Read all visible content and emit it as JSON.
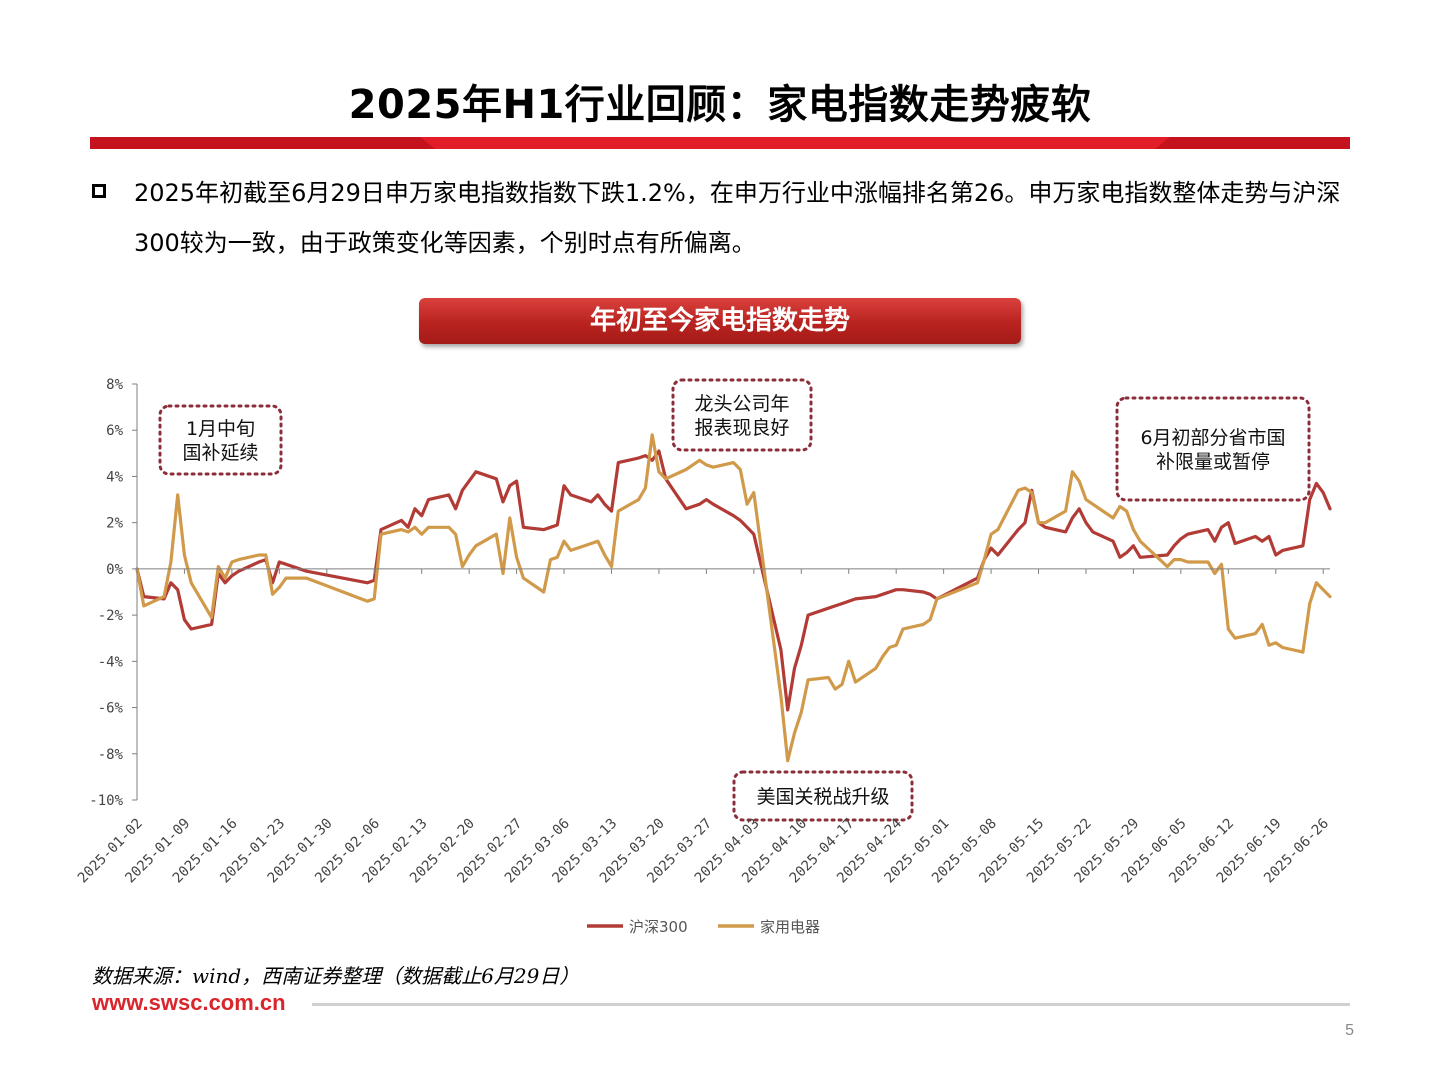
{
  "title": "2025年H1行业回顾：家电指数走势疲软",
  "bullet": "2025年初截至6月29日申万家电指数指数下跌1.2%，在申万行业中涨幅排名第26。申万家电指数整体走势与沪深300较为一致，由于政策变化等因素，个别时点有所偏离。",
  "chart_banner": "年初至今家电指数走势",
  "source": "数据来源：wind，西南证券整理（数据截止6月29日）",
  "website": "www.swsc.com.cn",
  "page_number": "5",
  "colors": {
    "accent": "#d9252b",
    "hs300": "#b23b36",
    "appliance": "#d09a4a",
    "annotation_border": "#8b2e3a"
  },
  "chart_data": {
    "type": "line",
    "ylim": [
      -10,
      8
    ],
    "yticks": [
      8,
      6,
      4,
      2,
      0,
      -2,
      -4,
      -6,
      -8,
      -10
    ],
    "ytick_labels": [
      "8%",
      "6%",
      "4%",
      "2%",
      "0%",
      "-2%",
      "-4%",
      "-6%",
      "-8%",
      "-10%"
    ],
    "xlim": [
      "2025-01-02",
      "2025-06-27"
    ],
    "xticks": [
      "2025-01-02",
      "2025-01-09",
      "2025-01-16",
      "2025-01-23",
      "2025-01-30",
      "2025-02-06",
      "2025-02-13",
      "2025-02-20",
      "2025-02-27",
      "2025-03-06",
      "2025-03-13",
      "2025-03-20",
      "2025-03-27",
      "2025-04-03",
      "2025-04-10",
      "2025-04-17",
      "2025-04-24",
      "2025-05-01",
      "2025-05-08",
      "2025-05-15",
      "2025-05-22",
      "2025-05-29",
      "2025-06-05",
      "2025-06-12",
      "2025-06-19",
      "2025-06-26"
    ],
    "legend_position": "bottom",
    "series": [
      {
        "name": "沪深300",
        "color": "#b23b36",
        "points": [
          [
            "2025-01-02",
            0
          ],
          [
            "2025-01-03",
            -1.2
          ],
          [
            "2025-01-06",
            -1.3
          ],
          [
            "2025-01-07",
            -0.6
          ],
          [
            "2025-01-08",
            -0.9
          ],
          [
            "2025-01-09",
            -2.2
          ],
          [
            "2025-01-10",
            -2.6
          ],
          [
            "2025-01-13",
            -2.4
          ],
          [
            "2025-01-14",
            -0.2
          ],
          [
            "2025-01-15",
            -0.6
          ],
          [
            "2025-01-16",
            -0.3
          ],
          [
            "2025-01-17",
            -0.1
          ],
          [
            "2025-01-20",
            0.3
          ],
          [
            "2025-01-21",
            0.4
          ],
          [
            "2025-01-22",
            -0.6
          ],
          [
            "2025-01-23",
            0.3
          ],
          [
            "2025-01-24",
            0.2
          ],
          [
            "2025-01-27",
            -0.1
          ],
          [
            "2025-02-05",
            -0.6
          ],
          [
            "2025-02-06",
            -0.5
          ],
          [
            "2025-02-07",
            1.7
          ],
          [
            "2025-02-10",
            2.1
          ],
          [
            "2025-02-11",
            1.8
          ],
          [
            "2025-02-12",
            2.6
          ],
          [
            "2025-02-13",
            2.3
          ],
          [
            "2025-02-14",
            3.0
          ],
          [
            "2025-02-17",
            3.2
          ],
          [
            "2025-02-18",
            2.6
          ],
          [
            "2025-02-19",
            3.4
          ],
          [
            "2025-02-20",
            3.8
          ],
          [
            "2025-02-21",
            4.2
          ],
          [
            "2025-02-24",
            3.9
          ],
          [
            "2025-02-25",
            2.9
          ],
          [
            "2025-02-26",
            3.6
          ],
          [
            "2025-02-27",
            3.8
          ],
          [
            "2025-02-28",
            1.8
          ],
          [
            "2025-03-03",
            1.7
          ],
          [
            "2025-03-04",
            1.8
          ],
          [
            "2025-03-05",
            1.9
          ],
          [
            "2025-03-06",
            3.6
          ],
          [
            "2025-03-07",
            3.2
          ],
          [
            "2025-03-10",
            2.9
          ],
          [
            "2025-03-11",
            3.2
          ],
          [
            "2025-03-12",
            2.8
          ],
          [
            "2025-03-13",
            2.5
          ],
          [
            "2025-03-14",
            4.6
          ],
          [
            "2025-03-17",
            4.8
          ],
          [
            "2025-03-18",
            4.9
          ],
          [
            "2025-03-19",
            4.7
          ],
          [
            "2025-03-20",
            5.1
          ],
          [
            "2025-03-21",
            3.9
          ],
          [
            "2025-03-24",
            2.6
          ],
          [
            "2025-03-25",
            2.7
          ],
          [
            "2025-03-26",
            2.8
          ],
          [
            "2025-03-27",
            3.0
          ],
          [
            "2025-03-28",
            2.8
          ],
          [
            "2025-03-31",
            2.3
          ],
          [
            "2025-04-01",
            2.1
          ],
          [
            "2025-04-02",
            1.8
          ],
          [
            "2025-04-03",
            1.5
          ],
          [
            "2025-04-07",
            -3.5
          ],
          [
            "2025-04-08",
            -6.1
          ],
          [
            "2025-04-09",
            -4.3
          ],
          [
            "2025-04-10",
            -3.3
          ],
          [
            "2025-04-11",
            -2.0
          ],
          [
            "2025-04-14",
            -1.7
          ],
          [
            "2025-04-15",
            -1.6
          ],
          [
            "2025-04-16",
            -1.5
          ],
          [
            "2025-04-17",
            -1.4
          ],
          [
            "2025-04-18",
            -1.3
          ],
          [
            "2025-04-21",
            -1.2
          ],
          [
            "2025-04-22",
            -1.1
          ],
          [
            "2025-04-23",
            -1.0
          ],
          [
            "2025-04-24",
            -0.9
          ],
          [
            "2025-04-25",
            -0.9
          ],
          [
            "2025-04-28",
            -1.0
          ],
          [
            "2025-04-29",
            -1.1
          ],
          [
            "2025-04-30",
            -1.3
          ],
          [
            "2025-05-06",
            -0.4
          ],
          [
            "2025-05-07",
            0.4
          ],
          [
            "2025-05-08",
            0.9
          ],
          [
            "2025-05-09",
            0.6
          ],
          [
            "2025-05-12",
            1.7
          ],
          [
            "2025-05-13",
            2.0
          ],
          [
            "2025-05-14",
            3.4
          ],
          [
            "2025-05-15",
            2.0
          ],
          [
            "2025-05-16",
            1.8
          ],
          [
            "2025-05-19",
            1.6
          ],
          [
            "2025-05-20",
            2.2
          ],
          [
            "2025-05-21",
            2.6
          ],
          [
            "2025-05-22",
            2.0
          ],
          [
            "2025-05-23",
            1.6
          ],
          [
            "2025-05-26",
            1.2
          ],
          [
            "2025-05-27",
            0.5
          ],
          [
            "2025-05-28",
            0.7
          ],
          [
            "2025-05-29",
            1.0
          ],
          [
            "2025-05-30",
            0.5
          ],
          [
            "2025-06-03",
            0.6
          ],
          [
            "2025-06-04",
            1.0
          ],
          [
            "2025-06-05",
            1.3
          ],
          [
            "2025-06-06",
            1.5
          ],
          [
            "2025-06-09",
            1.7
          ],
          [
            "2025-06-10",
            1.2
          ],
          [
            "2025-06-11",
            1.8
          ],
          [
            "2025-06-12",
            2.0
          ],
          [
            "2025-06-13",
            1.1
          ],
          [
            "2025-06-16",
            1.4
          ],
          [
            "2025-06-17",
            1.2
          ],
          [
            "2025-06-18",
            1.4
          ],
          [
            "2025-06-19",
            0.6
          ],
          [
            "2025-06-20",
            0.8
          ],
          [
            "2025-06-23",
            1.0
          ],
          [
            "2025-06-24",
            3.0
          ],
          [
            "2025-06-25",
            3.7
          ],
          [
            "2025-06-26",
            3.3
          ],
          [
            "2025-06-27",
            2.6
          ]
        ]
      },
      {
        "name": "家用电器",
        "color": "#d09a4a",
        "points": [
          [
            "2025-01-02",
            0
          ],
          [
            "2025-01-03",
            -1.6
          ],
          [
            "2025-01-06",
            -1.2
          ],
          [
            "2025-01-07",
            0.3
          ],
          [
            "2025-01-08",
            3.2
          ],
          [
            "2025-01-09",
            0.6
          ],
          [
            "2025-01-10",
            -0.6
          ],
          [
            "2025-01-13",
            -2.1
          ],
          [
            "2025-01-14",
            0.1
          ],
          [
            "2025-01-15",
            -0.4
          ],
          [
            "2025-01-16",
            0.3
          ],
          [
            "2025-01-17",
            0.4
          ],
          [
            "2025-01-20",
            0.6
          ],
          [
            "2025-01-21",
            0.6
          ],
          [
            "2025-01-22",
            -1.1
          ],
          [
            "2025-01-23",
            -0.8
          ],
          [
            "2025-01-24",
            -0.4
          ],
          [
            "2025-01-27",
            -0.4
          ],
          [
            "2025-02-05",
            -1.4
          ],
          [
            "2025-02-06",
            -1.3
          ],
          [
            "2025-02-07",
            1.5
          ],
          [
            "2025-02-10",
            1.7
          ],
          [
            "2025-02-11",
            1.6
          ],
          [
            "2025-02-12",
            1.8
          ],
          [
            "2025-02-13",
            1.5
          ],
          [
            "2025-02-14",
            1.8
          ],
          [
            "2025-02-17",
            1.8
          ],
          [
            "2025-02-18",
            1.5
          ],
          [
            "2025-02-19",
            0.1
          ],
          [
            "2025-02-20",
            0.6
          ],
          [
            "2025-02-21",
            1.0
          ],
          [
            "2025-02-24",
            1.5
          ],
          [
            "2025-02-25",
            -0.2
          ],
          [
            "2025-02-26",
            2.2
          ],
          [
            "2025-02-27",
            0.5
          ],
          [
            "2025-02-28",
            -0.4
          ],
          [
            "2025-03-03",
            -1.0
          ],
          [
            "2025-03-04",
            0.4
          ],
          [
            "2025-03-05",
            0.5
          ],
          [
            "2025-03-06",
            1.2
          ],
          [
            "2025-03-07",
            0.8
          ],
          [
            "2025-03-10",
            1.1
          ],
          [
            "2025-03-11",
            1.2
          ],
          [
            "2025-03-12",
            0.6
          ],
          [
            "2025-03-13",
            0.1
          ],
          [
            "2025-03-14",
            2.5
          ],
          [
            "2025-03-17",
            3.0
          ],
          [
            "2025-03-18",
            3.5
          ],
          [
            "2025-03-19",
            5.8
          ],
          [
            "2025-03-20",
            4.2
          ],
          [
            "2025-03-21",
            3.9
          ],
          [
            "2025-03-24",
            4.3
          ],
          [
            "2025-03-25",
            4.5
          ],
          [
            "2025-03-26",
            4.7
          ],
          [
            "2025-03-27",
            4.5
          ],
          [
            "2025-03-28",
            4.4
          ],
          [
            "2025-03-31",
            4.6
          ],
          [
            "2025-04-01",
            4.3
          ],
          [
            "2025-04-02",
            2.8
          ],
          [
            "2025-04-03",
            3.3
          ],
          [
            "2025-04-07",
            -5.5
          ],
          [
            "2025-04-08",
            -8.3
          ],
          [
            "2025-04-09",
            -7.1
          ],
          [
            "2025-04-10",
            -6.2
          ],
          [
            "2025-04-11",
            -4.8
          ],
          [
            "2025-04-14",
            -4.7
          ],
          [
            "2025-04-15",
            -5.2
          ],
          [
            "2025-04-16",
            -5.0
          ],
          [
            "2025-04-17",
            -4.0
          ],
          [
            "2025-04-18",
            -4.9
          ],
          [
            "2025-04-21",
            -4.3
          ],
          [
            "2025-04-22",
            -3.8
          ],
          [
            "2025-04-23",
            -3.4
          ],
          [
            "2025-04-24",
            -3.3
          ],
          [
            "2025-04-25",
            -2.6
          ],
          [
            "2025-04-28",
            -2.4
          ],
          [
            "2025-04-29",
            -2.2
          ],
          [
            "2025-04-30",
            -1.3
          ],
          [
            "2025-05-06",
            -0.6
          ],
          [
            "2025-05-07",
            0.4
          ],
          [
            "2025-05-08",
            1.5
          ],
          [
            "2025-05-09",
            1.7
          ],
          [
            "2025-05-12",
            3.4
          ],
          [
            "2025-05-13",
            3.5
          ],
          [
            "2025-05-14",
            3.3
          ],
          [
            "2025-05-15",
            2.0
          ],
          [
            "2025-05-16",
            2.0
          ],
          [
            "2025-05-19",
            2.5
          ],
          [
            "2025-05-20",
            4.2
          ],
          [
            "2025-05-21",
            3.8
          ],
          [
            "2025-05-22",
            3.0
          ],
          [
            "2025-05-23",
            2.8
          ],
          [
            "2025-05-26",
            2.2
          ],
          [
            "2025-05-27",
            2.7
          ],
          [
            "2025-05-28",
            2.5
          ],
          [
            "2025-05-29",
            1.7
          ],
          [
            "2025-05-30",
            1.2
          ],
          [
            "2025-06-03",
            0.1
          ],
          [
            "2025-06-04",
            0.4
          ],
          [
            "2025-06-05",
            0.4
          ],
          [
            "2025-06-06",
            0.3
          ],
          [
            "2025-06-09",
            0.3
          ],
          [
            "2025-06-10",
            -0.2
          ],
          [
            "2025-06-11",
            0.2
          ],
          [
            "2025-06-12",
            -2.6
          ],
          [
            "2025-06-13",
            -3.0
          ],
          [
            "2025-06-16",
            -2.8
          ],
          [
            "2025-06-17",
            -2.4
          ],
          [
            "2025-06-18",
            -3.3
          ],
          [
            "2025-06-19",
            -3.2
          ],
          [
            "2025-06-20",
            -3.4
          ],
          [
            "2025-06-23",
            -3.6
          ],
          [
            "2025-06-24",
            -1.5
          ],
          [
            "2025-06-25",
            -0.6
          ],
          [
            "2025-06-26",
            -0.9
          ],
          [
            "2025-06-27",
            -1.2
          ]
        ]
      }
    ],
    "annotations": [
      {
        "text": [
          "1月中旬",
          "国补延续"
        ]
      },
      {
        "text": [
          "龙头公司年",
          "报表现良好"
        ]
      },
      {
        "text": [
          "6月初部分省市国",
          "补限量或暂停"
        ]
      },
      {
        "text": [
          "美国关税战升级"
        ]
      }
    ]
  }
}
